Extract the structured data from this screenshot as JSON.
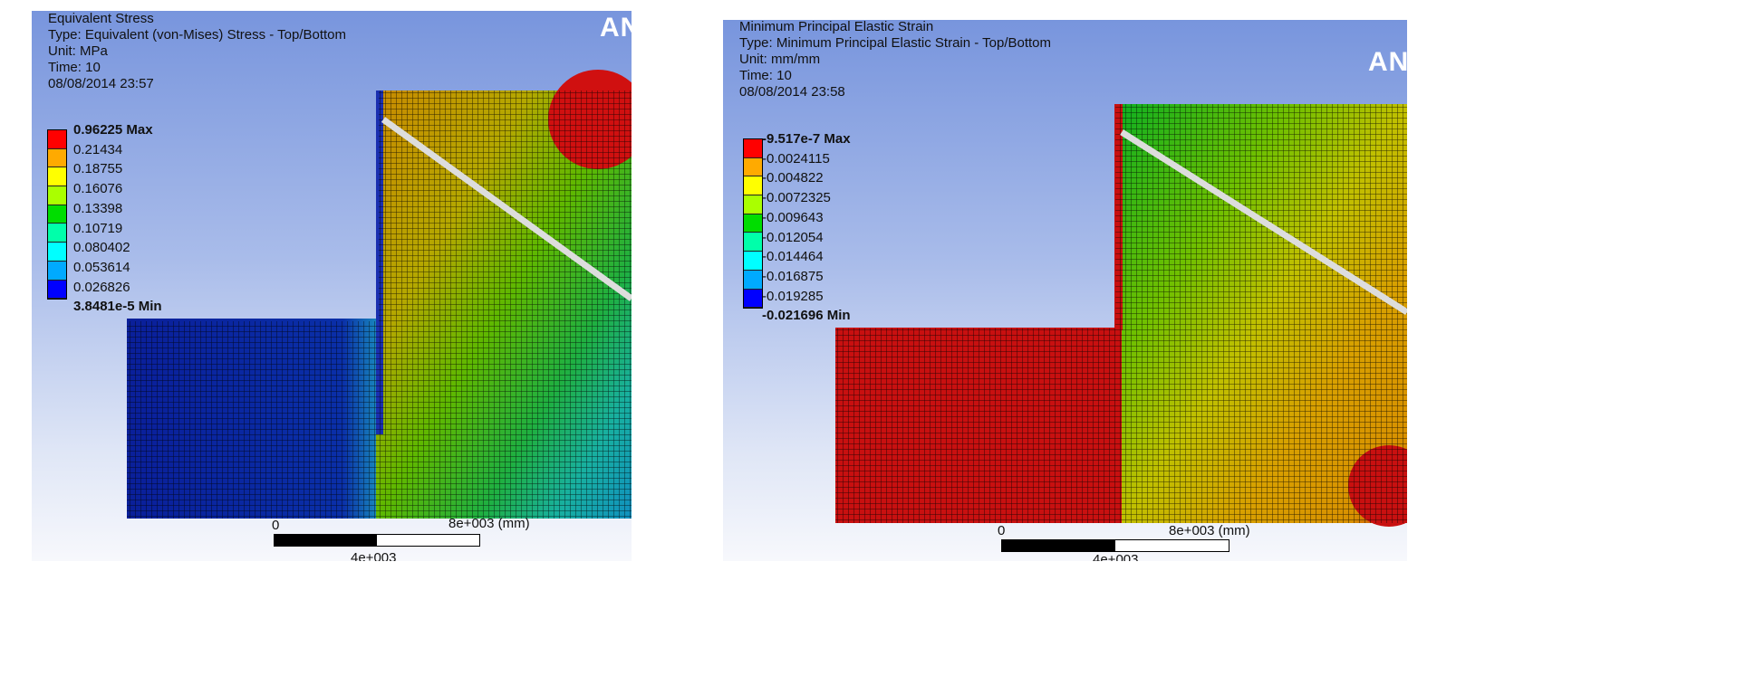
{
  "left": {
    "title": "Equivalent Stress",
    "type": "Type: Equivalent (von-Mises) Stress - Top/Bottom",
    "unit": "Unit: MPa",
    "time": "Time: 10",
    "date": "08/08/2014 23:57",
    "logo": "AN",
    "legend": [
      "0.96225 Max",
      "0.21434",
      "0.18755",
      "0.16076",
      "0.13398",
      "0.10719",
      "0.080402",
      "0.053614",
      "0.026826",
      "3.8481e-5 Min"
    ],
    "scale": {
      "zero": "0",
      "max": "8e+003 (mm)",
      "mid": "4e+003"
    }
  },
  "right": {
    "title": "Minimum Principal Elastic Strain",
    "type": "Type: Minimum Principal Elastic Strain - Top/Bottom",
    "unit": "Unit: mm/mm",
    "time": "Time: 10",
    "date": "08/08/2014 23:58",
    "logo": "AN",
    "legend": [
      "-9.517e-7 Max",
      "-0.0024115",
      "-0.004822",
      "-0.0072325",
      "-0.009643",
      "-0.012054",
      "-0.014464",
      "-0.016875",
      "-0.019285",
      "-0.021696 Min"
    ],
    "scale": {
      "zero": "0",
      "max": "8e+003 (mm)",
      "mid": "4e+003"
    }
  },
  "legend_colors": [
    "#ff0000",
    "#ffaa00",
    "#ffff00",
    "#aaff00",
    "#00dd00",
    "#00ffaa",
    "#00ffff",
    "#00aaff",
    "#0000ff"
  ]
}
